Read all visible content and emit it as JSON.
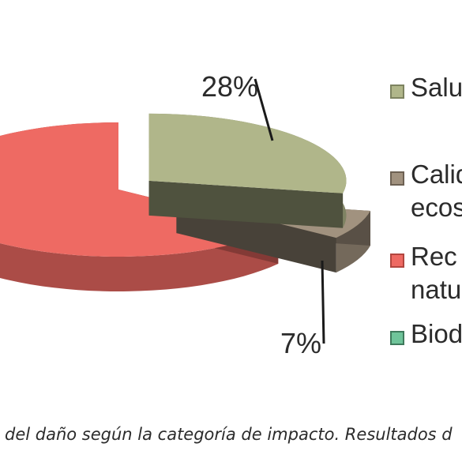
{
  "chart_data": {
    "type": "pie",
    "style": "3d-exploded",
    "slices": [
      {
        "label": "Salu",
        "value": 28,
        "data_label": "28%",
        "color": "#b0b68a"
      },
      {
        "label": "Calid ecos",
        "value": 7,
        "data_label": "7%",
        "color": "#a1927f"
      },
      {
        "label": "Rec natu",
        "value": 65,
        "data_label": "",
        "color": "#ee6a63"
      },
      {
        "label": "Biod",
        "value": 0,
        "data_label": "",
        "color": "#6fc49a"
      }
    ],
    "legend_placement": "right",
    "legend": [
      {
        "lines": [
          "Salu"
        ],
        "color": "#b0b68a",
        "border": "#7d8360"
      },
      {
        "lines": [
          "Calid",
          "ecos"
        ],
        "color": "#a1927f",
        "border": "#6d6153"
      },
      {
        "lines": [
          "Rec",
          "natu"
        ],
        "color": "#ee6a63",
        "border": "#b2463f"
      },
      {
        "lines": [
          "Biod"
        ],
        "color": "#6fc49a",
        "border": "#3f7a5c"
      }
    ]
  },
  "caption": "del daño según la categoría de impacto. Resultados d"
}
